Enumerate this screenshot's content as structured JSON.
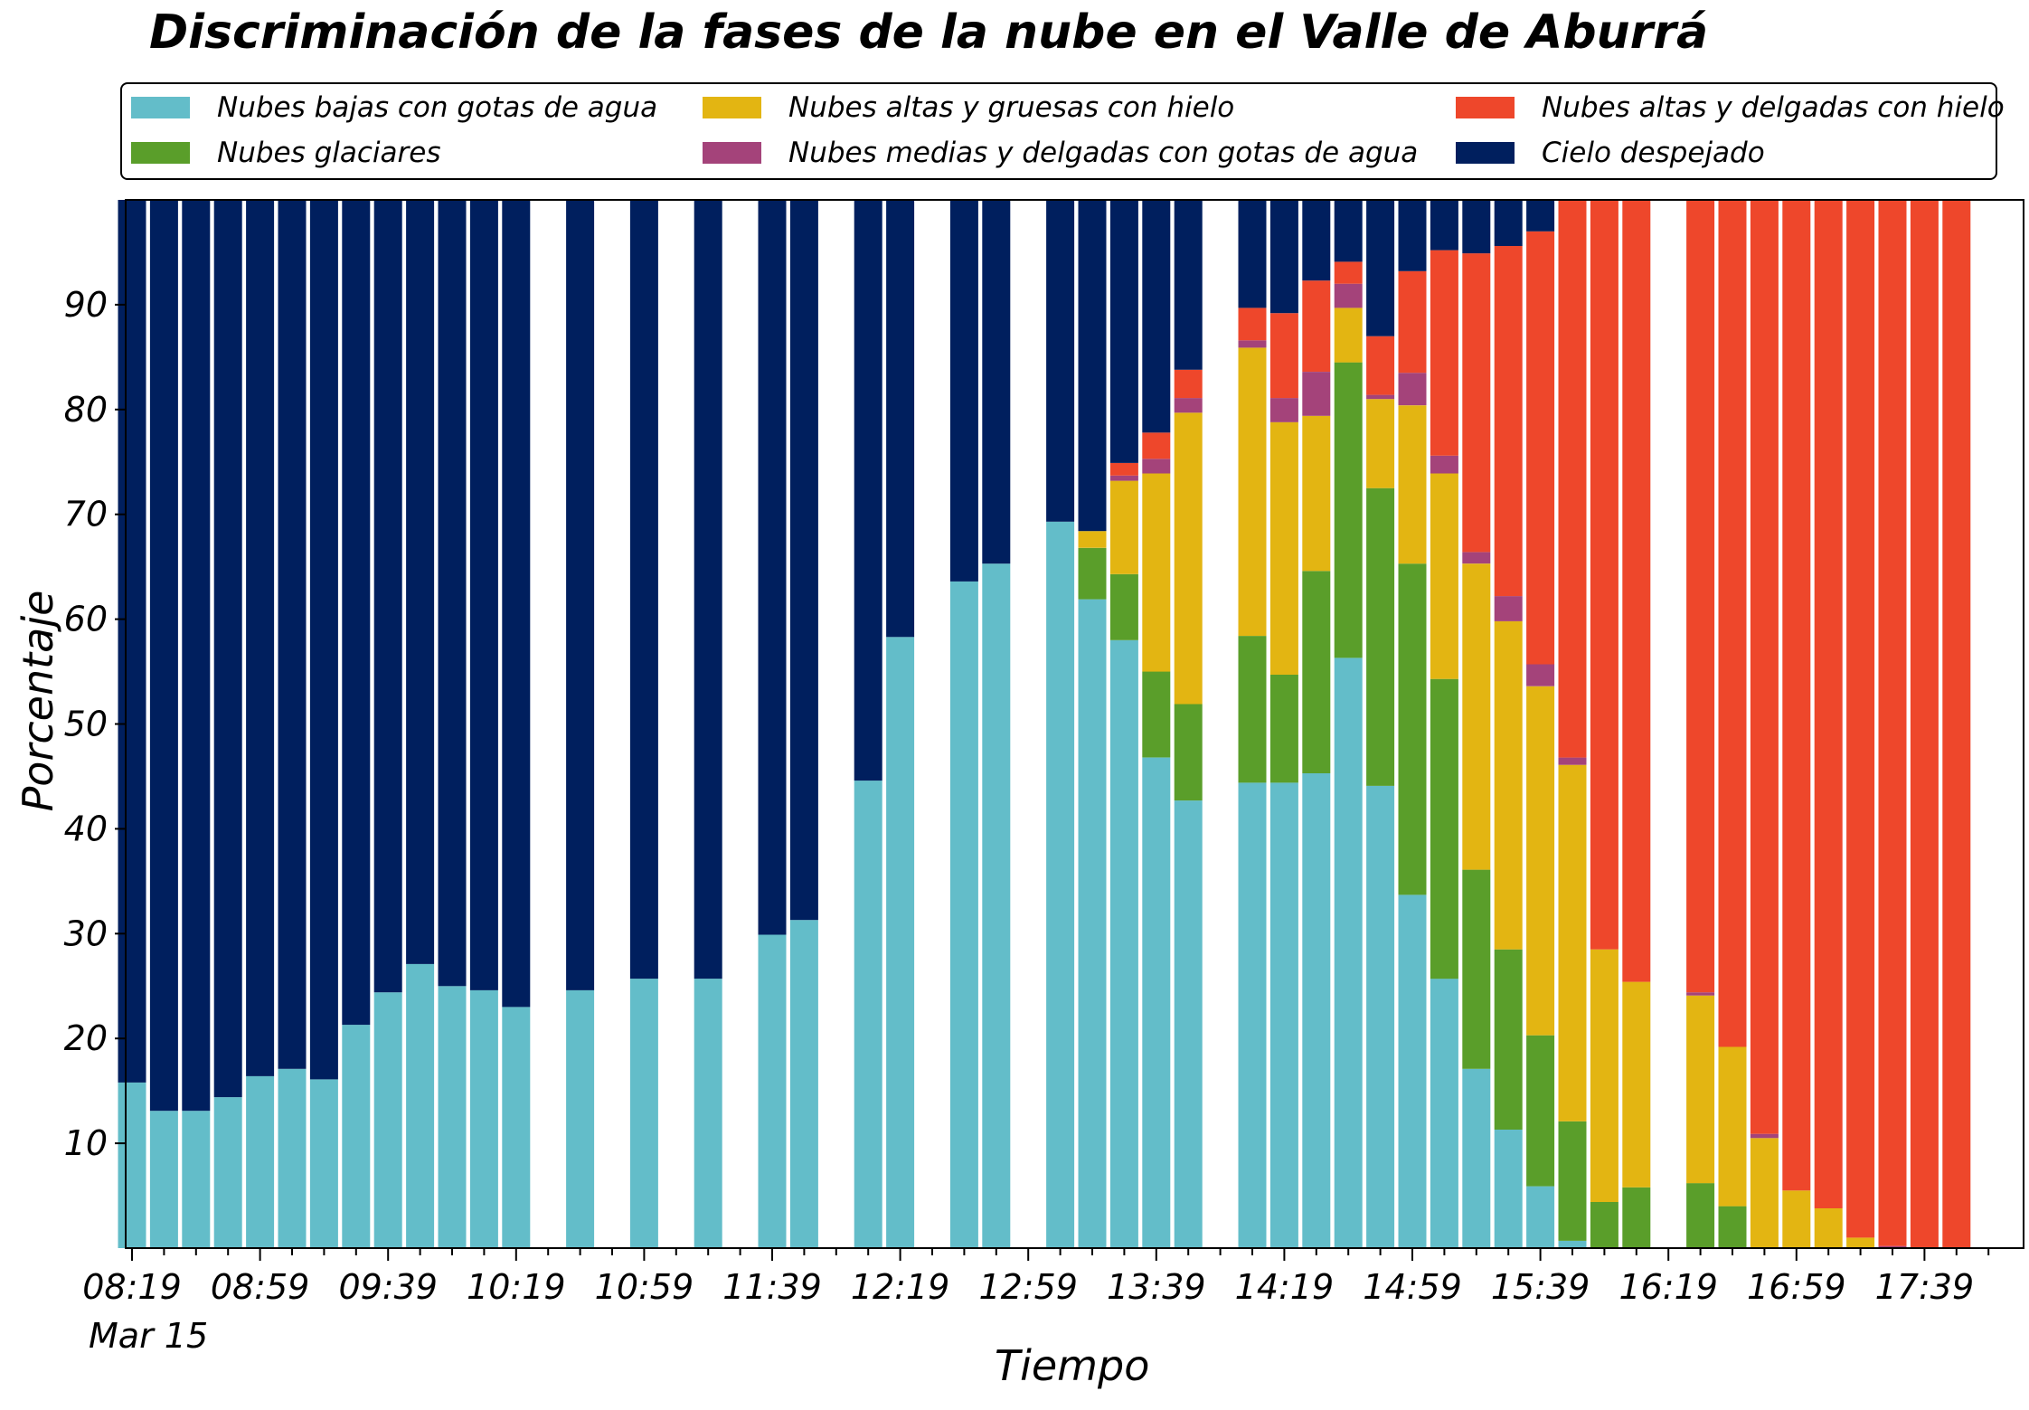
{
  "title": "Discriminación de la fases de la nube en el Valle de Aburrá",
  "chart_data": {
    "type": "bar",
    "stacked": true,
    "title": "Discriminación de la fases de la nube en el Valle de Aburrá",
    "xlabel": "Tiempo",
    "ylabel": "Porcentaje",
    "ylim": [
      0,
      100
    ],
    "yticks": [
      10,
      20,
      30,
      40,
      50,
      60,
      70,
      80,
      90
    ],
    "x_tick_labels": [
      "08:19",
      "08:59",
      "09:39",
      "10:19",
      "10:59",
      "11:39",
      "12:19",
      "12:59",
      "13:39",
      "14:19",
      "14:59",
      "15:39",
      "16:19",
      "16:59",
      "17:39"
    ],
    "x_date_label": "Mar 15",
    "x_slots_per_major_tick": 4,
    "x_total_slots": 58.8,
    "legend_position": "top",
    "legend_columns": 3,
    "series": [
      {
        "name": "Nubes bajas con gotas de agua",
        "color": "#63bdc9"
      },
      {
        "name": "Nubes glaciares",
        "color": "#5a9e2a"
      },
      {
        "name": "Nubes altas y gruesas con hielo",
        "color": "#e3b512"
      },
      {
        "name": "Nubes medias y delgadas con gotas de agua",
        "color": "#a4437a"
      },
      {
        "name": "Nubes altas y delgadas con hielo",
        "color": "#ee472b"
      },
      {
        "name": "Cielo despejado",
        "color": "#001f5e"
      }
    ],
    "bars": [
      {
        "slot": 0,
        "values": [
          15.8,
          0,
          0,
          0,
          0,
          84.2
        ]
      },
      {
        "slot": 1,
        "values": [
          13.1,
          0,
          0,
          0,
          0,
          86.9
        ]
      },
      {
        "slot": 2,
        "values": [
          13.1,
          0,
          0,
          0,
          0,
          86.9
        ]
      },
      {
        "slot": 3,
        "values": [
          14.4,
          0,
          0,
          0,
          0,
          85.6
        ]
      },
      {
        "slot": 4,
        "values": [
          16.4,
          0,
          0,
          0,
          0,
          83.6
        ]
      },
      {
        "slot": 5,
        "values": [
          17.1,
          0,
          0,
          0,
          0,
          82.9
        ]
      },
      {
        "slot": 6,
        "values": [
          16.1,
          0,
          0,
          0,
          0,
          83.9
        ]
      },
      {
        "slot": 7,
        "values": [
          21.3,
          0,
          0,
          0,
          0,
          78.7
        ]
      },
      {
        "slot": 8,
        "values": [
          24.4,
          0,
          0,
          0,
          0,
          75.6
        ]
      },
      {
        "slot": 9,
        "values": [
          27.1,
          0,
          0,
          0,
          0,
          72.9
        ]
      },
      {
        "slot": 10,
        "values": [
          25.0,
          0,
          0,
          0,
          0,
          75.0
        ]
      },
      {
        "slot": 11,
        "values": [
          24.6,
          0,
          0,
          0,
          0,
          75.4
        ]
      },
      {
        "slot": 12,
        "values": [
          23.0,
          0,
          0,
          0,
          0,
          77.0
        ]
      },
      {
        "slot": 14,
        "values": [
          24.6,
          0,
          0,
          0,
          0,
          75.4
        ]
      },
      {
        "slot": 16,
        "values": [
          25.7,
          0,
          0,
          0,
          0,
          74.3
        ]
      },
      {
        "slot": 18,
        "values": [
          25.7,
          0,
          0,
          0,
          0,
          74.3
        ]
      },
      {
        "slot": 20,
        "values": [
          29.9,
          0,
          0,
          0,
          0,
          70.1
        ]
      },
      {
        "slot": 21,
        "values": [
          31.3,
          0,
          0,
          0,
          0,
          68.7
        ]
      },
      {
        "slot": 23,
        "values": [
          44.6,
          0,
          0,
          0,
          0,
          55.4
        ]
      },
      {
        "slot": 24,
        "values": [
          58.3,
          0,
          0,
          0,
          0,
          41.7
        ]
      },
      {
        "slot": 26,
        "values": [
          63.6,
          0,
          0,
          0,
          0,
          36.4
        ]
      },
      {
        "slot": 27,
        "values": [
          65.3,
          0,
          0,
          0,
          0,
          34.7
        ]
      },
      {
        "slot": 29,
        "values": [
          69.3,
          0,
          0,
          0,
          0,
          30.7
        ]
      },
      {
        "slot": 30,
        "values": [
          61.9,
          4.9,
          1.6,
          0,
          0,
          31.6
        ]
      },
      {
        "slot": 31,
        "values": [
          58.0,
          6.3,
          8.9,
          0.5,
          1.2,
          25.1
        ]
      },
      {
        "slot": 32,
        "values": [
          46.8,
          8.2,
          18.9,
          1.4,
          2.5,
          22.2
        ]
      },
      {
        "slot": 33,
        "values": [
          42.7,
          9.2,
          27.8,
          1.4,
          2.7,
          16.2
        ]
      },
      {
        "slot": 35,
        "values": [
          44.4,
          14.0,
          27.5,
          0.7,
          3.1,
          10.3
        ]
      },
      {
        "slot": 36,
        "values": [
          44.4,
          10.3,
          24.1,
          2.3,
          8.1,
          10.8
        ]
      },
      {
        "slot": 37,
        "values": [
          45.3,
          19.3,
          14.8,
          4.2,
          8.7,
          7.7
        ]
      },
      {
        "slot": 38,
        "values": [
          56.3,
          28.2,
          5.2,
          2.3,
          2.1,
          5.9
        ]
      },
      {
        "slot": 39,
        "values": [
          44.1,
          28.4,
          8.5,
          0.4,
          5.6,
          13.0
        ]
      },
      {
        "slot": 40,
        "values": [
          33.7,
          31.6,
          15.1,
          3.1,
          9.7,
          6.8
        ]
      },
      {
        "slot": 41,
        "values": [
          25.7,
          28.6,
          19.6,
          1.7,
          19.6,
          4.8
        ]
      },
      {
        "slot": 42,
        "values": [
          17.1,
          19.0,
          29.2,
          1.1,
          28.5,
          5.1
        ]
      },
      {
        "slot": 43,
        "values": [
          11.3,
          17.2,
          31.3,
          2.4,
          33.4,
          4.4
        ]
      },
      {
        "slot": 44,
        "values": [
          5.9,
          14.4,
          33.3,
          2.1,
          41.3,
          3.0
        ]
      },
      {
        "slot": 45,
        "values": [
          0.7,
          11.4,
          34.0,
          0.7,
          53.2,
          0
        ]
      },
      {
        "slot": 46,
        "values": [
          0,
          4.4,
          24.1,
          0,
          71.5,
          0
        ]
      },
      {
        "slot": 47,
        "values": [
          0,
          5.8,
          19.6,
          0,
          74.6,
          0
        ]
      },
      {
        "slot": 49,
        "values": [
          0,
          6.2,
          17.9,
          0.3,
          75.6,
          0
        ]
      },
      {
        "slot": 50,
        "values": [
          0,
          4.0,
          15.2,
          0,
          80.8,
          0
        ]
      },
      {
        "slot": 51,
        "values": [
          0,
          0,
          10.5,
          0.4,
          89.1,
          0
        ]
      },
      {
        "slot": 52,
        "values": [
          0,
          0,
          5.5,
          0,
          94.5,
          0
        ]
      },
      {
        "slot": 53,
        "values": [
          0,
          0,
          3.8,
          0,
          96.2,
          0
        ]
      },
      {
        "slot": 54,
        "values": [
          0,
          0,
          1.0,
          0,
          99.0,
          0
        ]
      },
      {
        "slot": 55,
        "values": [
          0,
          0,
          0,
          0.2,
          99.8,
          0
        ]
      },
      {
        "slot": 56,
        "values": [
          0,
          0,
          0,
          0,
          100,
          0
        ]
      },
      {
        "slot": 57,
        "values": [
          0,
          0,
          0,
          0,
          100,
          0
        ]
      }
    ]
  }
}
